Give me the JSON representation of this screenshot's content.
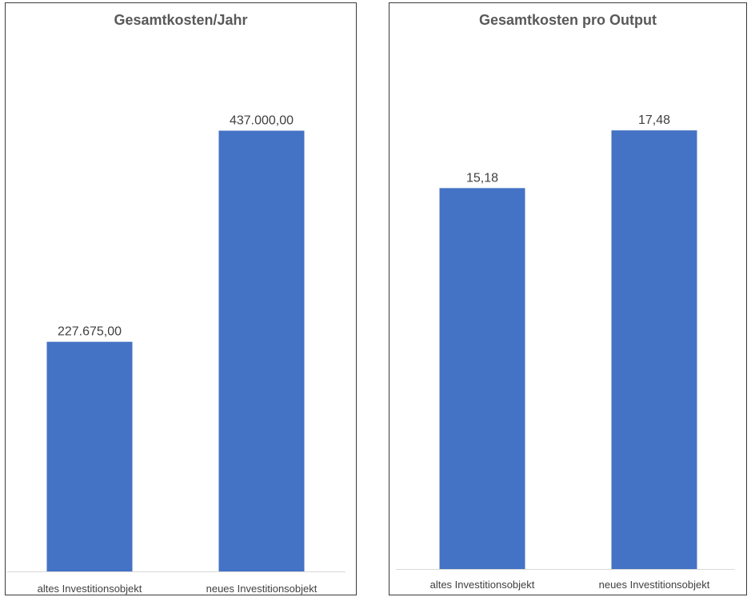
{
  "chart_data": [
    {
      "type": "bar",
      "title": "Gesamtkosten/Jahr",
      "categories": [
        "altes Investitionsobjekt",
        "neues Investitionsobjekt"
      ],
      "values": [
        227675.0,
        437000.0
      ],
      "value_labels": [
        "227.675,00",
        "437.000,00"
      ],
      "xlabel": "",
      "ylabel": "",
      "ylim": [
        0,
        500000
      ],
      "grid": false,
      "color": "#4472C4"
    },
    {
      "type": "bar",
      "title": "Gesamtkosten pro Output",
      "categories": [
        "altes Investitionsobjekt",
        "neues Investitionsobjekt"
      ],
      "values": [
        15.18,
        17.48
      ],
      "value_labels": [
        "15,18",
        "17,48"
      ],
      "xlabel": "",
      "ylabel": "",
      "ylim": [
        0,
        20
      ],
      "grid": false,
      "color": "#4472C4"
    }
  ]
}
